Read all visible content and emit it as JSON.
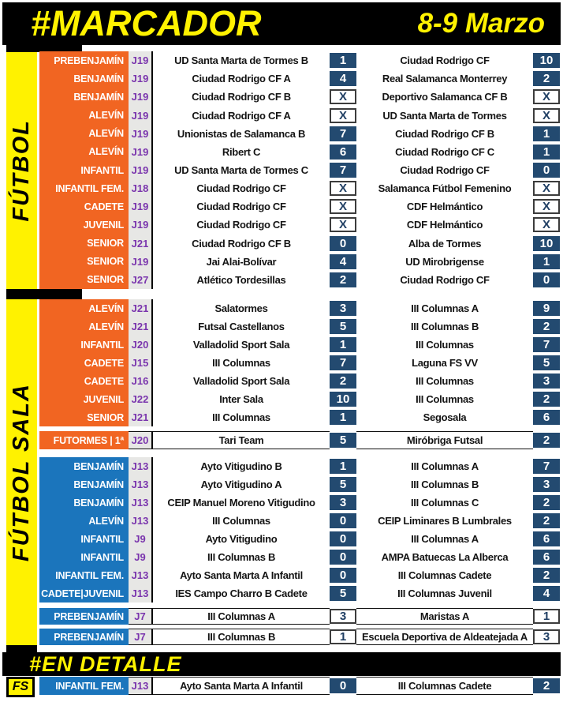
{
  "header": {
    "title": "#MARCADOR",
    "date": "8-9 Marzo"
  },
  "sidebar": {
    "futbol_label": "FÚTBOL",
    "futsal_label": "FÚTBOL SALA",
    "fs_tag": "FS"
  },
  "detail": {
    "title": "#EN DETALLE"
  },
  "colors": {
    "accent_yellow": "#FFF200",
    "futbol_orange": "#F16522",
    "futsal_blue": "#1B75BC",
    "score_navy": "#234A70",
    "jornada_purple": "#7A35AD",
    "header_black": "#000000"
  },
  "sections": [
    {
      "id": "futbol",
      "palette": "orange",
      "bordered": false,
      "rows": [
        {
          "category": "PREBENJAMÍN",
          "jornada": "J19",
          "home": "UD Santa Marta de Tormes B",
          "home_score": "1",
          "away": "Ciudad Rodrigo CF",
          "away_score": "10",
          "score_style": "navy"
        },
        {
          "category": "BENJAMÍN",
          "jornada": "J19",
          "home": "Ciudad Rodrigo CF A",
          "home_score": "4",
          "away": "Real Salamanca Monterrey",
          "away_score": "2",
          "score_style": "navy"
        },
        {
          "category": "BENJAMÍN",
          "jornada": "J19",
          "home": "Ciudad Rodrigo CF B",
          "home_score": "X",
          "away": "Deportivo Salamanca CF B",
          "away_score": "X",
          "score_style": "white"
        },
        {
          "category": "ALEVÍN",
          "jornada": "J19",
          "home": "Ciudad Rodrigo CF A",
          "home_score": "X",
          "away": "UD Santa Marta de Tormes",
          "away_score": "X",
          "score_style": "white"
        },
        {
          "category": "ALEVÍN",
          "jornada": "J19",
          "home": "Unionistas de Salamanca B",
          "home_score": "7",
          "away": "Ciudad Rodrigo CF B",
          "away_score": "1",
          "score_style": "navy"
        },
        {
          "category": "ALEVÍN",
          "jornada": "J19",
          "home": "Ribert C",
          "home_score": "6",
          "away": "Ciudad Rodrigo CF C",
          "away_score": "1",
          "score_style": "navy"
        },
        {
          "category": "INFANTIL",
          "jornada": "J19",
          "home": "UD Santa Marta de Tormes C",
          "home_score": "7",
          "away": "Ciudad Rodrigo CF",
          "away_score": "0",
          "score_style": "navy"
        },
        {
          "category": "INFANTIL FEM.",
          "jornada": "J18",
          "home": "Ciudad Rodrigo CF",
          "home_score": "X",
          "away": "Salamanca Fútbol Femenino",
          "away_score": "X",
          "score_style": "white"
        },
        {
          "category": "CADETE",
          "jornada": "J19",
          "home": "Ciudad Rodrigo CF",
          "home_score": "X",
          "away": "CDF Helmántico",
          "away_score": "X",
          "score_style": "white"
        },
        {
          "category": "JUVENIL",
          "jornada": "J19",
          "home": "Ciudad Rodrigo CF",
          "home_score": "X",
          "away": "CDF Helmántico",
          "away_score": "X",
          "score_style": "white"
        },
        {
          "category": "SENIOR",
          "jornada": "J21",
          "home": "Ciudad Rodrigo CF B",
          "home_score": "0",
          "away": "Alba de Tormes",
          "away_score": "10",
          "score_style": "navy"
        },
        {
          "category": "SENIOR",
          "jornada": "J19",
          "home": "Jai Alai-Bolívar",
          "home_score": "4",
          "away": "UD Mirobrigense",
          "away_score": "1",
          "score_style": "navy"
        },
        {
          "category": "SENIOR",
          "jornada": "J27",
          "home": "Atlético Tordesillas",
          "home_score": "2",
          "away": "Ciudad Rodrigo CF",
          "away_score": "0",
          "score_style": "navy"
        }
      ]
    },
    {
      "id": "futsal",
      "palette": "orange",
      "bordered": false,
      "rows": [
        {
          "category": "ALEVÍN",
          "jornada": "J21",
          "home": "Salatormes",
          "home_score": "3",
          "away": "III Columnas A",
          "away_score": "9",
          "score_style": "navy"
        },
        {
          "category": "ALEVÍN",
          "jornada": "J21",
          "home": "Futsal Castellanos",
          "home_score": "5",
          "away": "III Columnas B",
          "away_score": "2",
          "score_style": "navy"
        },
        {
          "category": "INFANTIL",
          "jornada": "J20",
          "home": "Valladolid Sport Sala",
          "home_score": "1",
          "away": "III Columnas",
          "away_score": "7",
          "score_style": "navy"
        },
        {
          "category": "CADETE",
          "jornada": "J15",
          "home": "III Columnas",
          "home_score": "7",
          "away": "Laguna FS VV",
          "away_score": "5",
          "score_style": "navy"
        },
        {
          "category": "CADETE",
          "jornada": "J16",
          "home": "Valladolid Sport Sala",
          "home_score": "2",
          "away": "III Columnas",
          "away_score": "3",
          "score_style": "navy"
        },
        {
          "category": "JUVENIL",
          "jornada": "J22",
          "home": "Inter Sala",
          "home_score": "10",
          "away": "III Columnas",
          "away_score": "2",
          "score_style": "navy"
        },
        {
          "category": "SENIOR",
          "jornada": "J21",
          "home": "III Columnas",
          "home_score": "1",
          "away": "Segosala",
          "away_score": "6",
          "score_style": "navy"
        }
      ]
    },
    {
      "id": "futormes",
      "palette": "orange",
      "bordered": true,
      "rows": [
        {
          "category": "FUTORMES | 1ª",
          "jornada": "J20",
          "home": "Tari Team",
          "home_score": "5",
          "away": "Miróbriga Futsal",
          "away_score": "2",
          "score_style": "navy"
        }
      ]
    },
    {
      "id": "futsal-blue",
      "palette": "blue",
      "bordered": false,
      "rows": [
        {
          "category": "BENJAMÍN",
          "jornada": "J13",
          "home": "Ayto Vitigudino B",
          "home_score": "1",
          "away": "III Columnas A",
          "away_score": "7",
          "score_style": "navy"
        },
        {
          "category": "BENJAMÍN",
          "jornada": "J13",
          "home": "Ayto Vitigudino A",
          "home_score": "5",
          "away": "III Columnas B",
          "away_score": "3",
          "score_style": "navy"
        },
        {
          "category": "BENJAMÍN",
          "jornada": "J13",
          "home": "CEIP Manuel Moreno Vitigudino",
          "home_score": "3",
          "away": "III Columnas C",
          "away_score": "2",
          "score_style": "navy"
        },
        {
          "category": "ALEVÍN",
          "jornada": "J13",
          "home": "III Columnas",
          "home_score": "0",
          "away": "CEIP Liminares B Lumbrales",
          "away_score": "2",
          "score_style": "navy"
        },
        {
          "category": "INFANTIL",
          "jornada": "J9",
          "home": "Ayto Vitigudino",
          "home_score": "0",
          "away": "III Columnas A",
          "away_score": "6",
          "score_style": "navy"
        },
        {
          "category": "INFANTIL",
          "jornada": "J9",
          "home": "III Columnas B",
          "home_score": "0",
          "away": "AMPA Batuecas La Alberca",
          "away_score": "6",
          "score_style": "navy"
        },
        {
          "category": "INFANTIL FEM.",
          "jornada": "J13",
          "home": "Ayto Santa Marta A Infantil",
          "home_score": "0",
          "away": "III Columnas Cadete",
          "away_score": "2",
          "score_style": "navy"
        },
        {
          "category": "CADETE|JUVENIL",
          "jornada": "J13",
          "home": "IES Campo Charro B Cadete",
          "home_score": "5",
          "away": "III Columnas Juvenil",
          "away_score": "4",
          "score_style": "navy"
        }
      ]
    },
    {
      "id": "prebenjamin",
      "palette": "blue",
      "bordered": true,
      "rows": [
        {
          "category": "PREBENJAMÍN",
          "jornada": "J7",
          "home": "III Columnas A",
          "home_score": "3",
          "away": "Maristas A",
          "away_score": "1",
          "score_style": "white"
        },
        {
          "category": "PREBENJAMÍN",
          "jornada": "J7",
          "home": "III Columnas B",
          "home_score": "1",
          "away": "Escuela Deportiva de Aldeatejada A",
          "away_score": "3",
          "score_style": "white"
        }
      ]
    },
    {
      "id": "detail",
      "palette": "blue",
      "bordered": true,
      "rows": [
        {
          "category": "INFANTIL FEM.",
          "jornada": "J13",
          "home": "Ayto Santa Marta A Infantil",
          "home_score": "0",
          "away": "III Columnas Cadete",
          "away_score": "2",
          "score_style": "navy"
        }
      ]
    }
  ]
}
